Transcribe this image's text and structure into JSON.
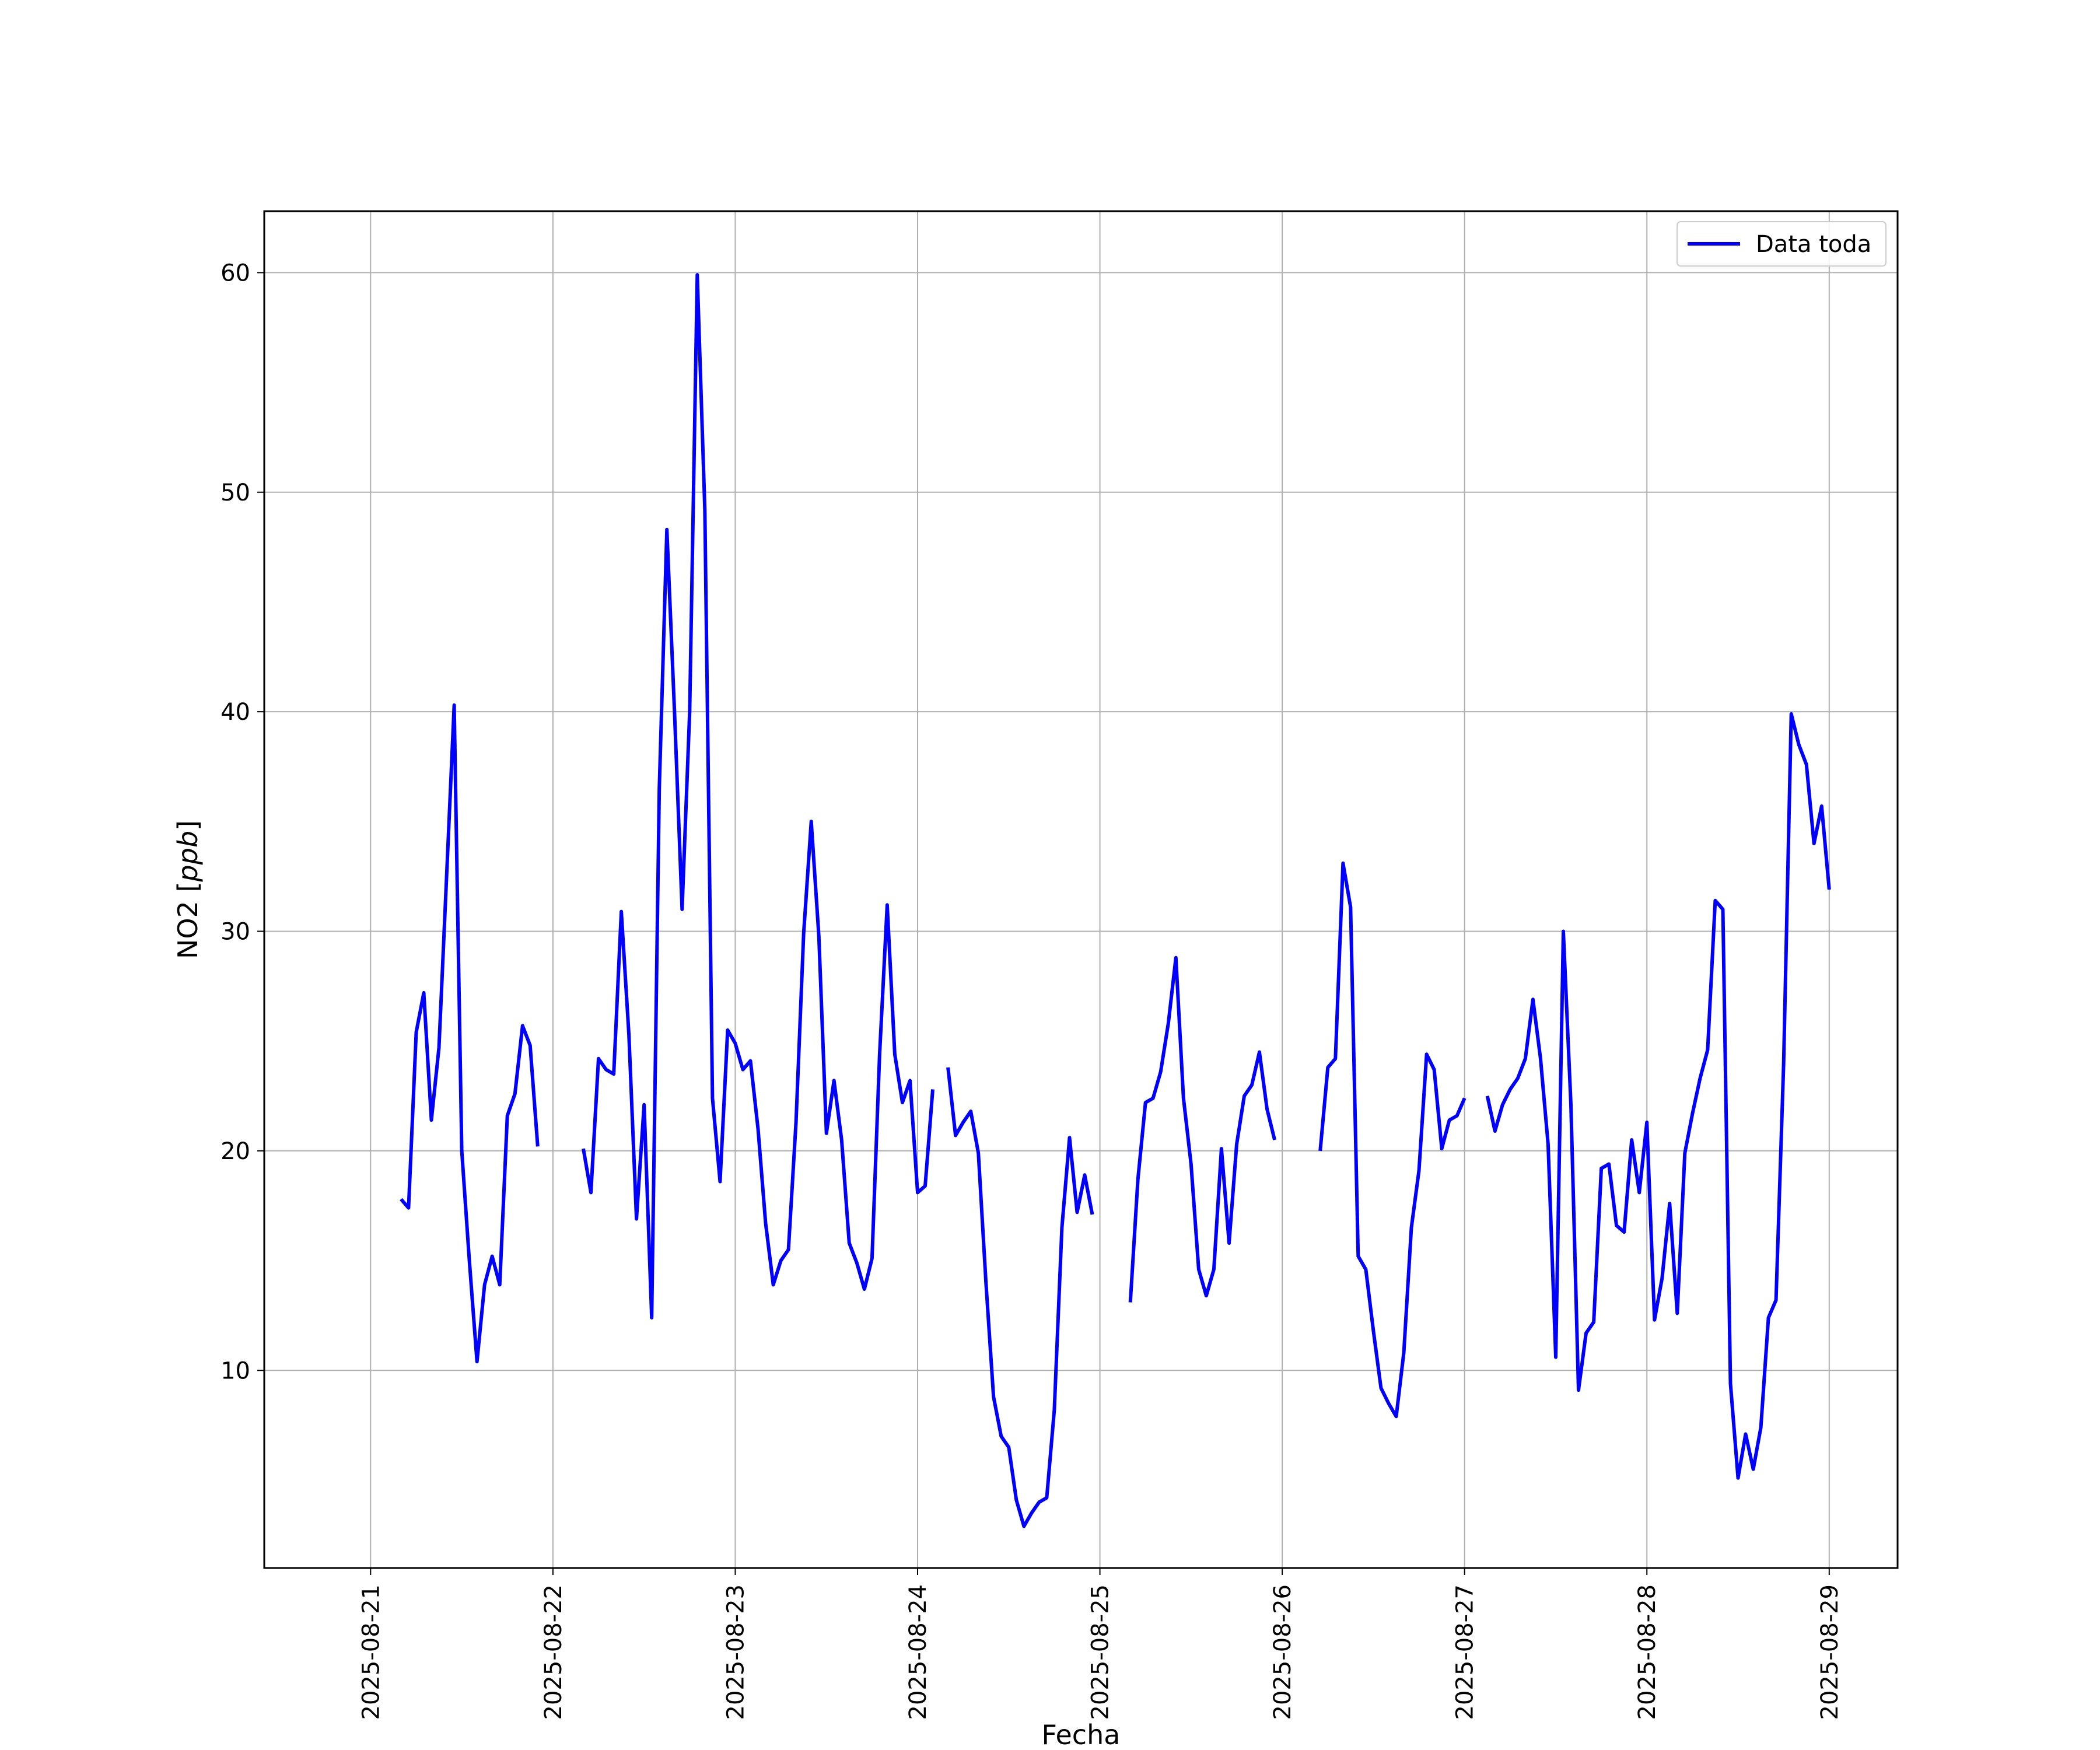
{
  "chart_data": {
    "type": "line",
    "xlabel": "Fecha",
    "ylabel_prefix": "NO2 [",
    "ylabel_unit": "ppb",
    "ylabel_suffix": "]",
    "x_ticks": [
      "2025-08-21",
      "2025-08-22",
      "2025-08-23",
      "2025-08-24",
      "2025-08-25",
      "2025-08-26",
      "2025-08-27",
      "2025-08-28",
      "2025-08-29"
    ],
    "y_ticks": [
      10,
      20,
      30,
      40,
      50,
      60
    ],
    "xlim": [
      "2025-08-20T10:00",
      "2025-08-29T09:00"
    ],
    "ylim": [
      1.0,
      62.8
    ],
    "grid": true,
    "legend_position": "upper-right",
    "line_color": "#0000ff",
    "series": [
      {
        "name": "Data toda",
        "segments": [
          [
            [
              "2025-08-21T04:00",
              17.8
            ],
            [
              "2025-08-21T05:00",
              17.4
            ],
            [
              "2025-08-21T06:00",
              25.4
            ],
            [
              "2025-08-21T07:00",
              27.2
            ],
            [
              "2025-08-21T08:00",
              21.4
            ],
            [
              "2025-08-21T09:00",
              24.7
            ],
            [
              "2025-08-21T10:00",
              32.5
            ],
            [
              "2025-08-21T11:00",
              40.3
            ],
            [
              "2025-08-21T12:00",
              20.0
            ],
            [
              "2025-08-21T13:00",
              15.0
            ],
            [
              "2025-08-21T14:00",
              10.4
            ],
            [
              "2025-08-21T15:00",
              13.9
            ],
            [
              "2025-08-21T16:00",
              15.2
            ],
            [
              "2025-08-21T17:00",
              13.9
            ],
            [
              "2025-08-21T18:00",
              21.6
            ],
            [
              "2025-08-21T19:00",
              22.6
            ],
            [
              "2025-08-21T20:00",
              25.7
            ],
            [
              "2025-08-21T21:00",
              24.8
            ],
            [
              "2025-08-21T22:00",
              20.2
            ]
          ],
          [
            [
              "2025-08-22T04:00",
              20.1
            ],
            [
              "2025-08-22T05:00",
              18.1
            ],
            [
              "2025-08-22T06:00",
              24.2
            ],
            [
              "2025-08-22T07:00",
              23.7
            ],
            [
              "2025-08-22T08:00",
              23.5
            ],
            [
              "2025-08-22T09:00",
              30.9
            ],
            [
              "2025-08-22T10:00",
              25.3
            ],
            [
              "2025-08-22T11:00",
              16.9
            ],
            [
              "2025-08-22T12:00",
              22.1
            ],
            [
              "2025-08-22T13:00",
              12.4
            ],
            [
              "2025-08-22T14:00",
              36.5
            ],
            [
              "2025-08-22T15:00",
              48.3
            ],
            [
              "2025-08-22T16:00",
              40.0
            ],
            [
              "2025-08-22T17:00",
              31.0
            ],
            [
              "2025-08-22T18:00",
              40.0
            ],
            [
              "2025-08-22T19:00",
              59.9
            ],
            [
              "2025-08-22T20:00",
              49.2
            ],
            [
              "2025-08-22T21:00",
              22.4
            ],
            [
              "2025-08-22T22:00",
              18.6
            ],
            [
              "2025-08-22T23:00",
              25.5
            ],
            [
              "2025-08-23T00:00",
              24.9
            ],
            [
              "2025-08-23T01:00",
              23.7
            ],
            [
              "2025-08-23T02:00",
              24.1
            ],
            [
              "2025-08-23T03:00",
              21.0
            ],
            [
              "2025-08-23T04:00",
              16.7
            ],
            [
              "2025-08-23T05:00",
              13.9
            ],
            [
              "2025-08-23T06:00",
              15.0
            ],
            [
              "2025-08-23T07:00",
              15.5
            ],
            [
              "2025-08-23T08:00",
              21.3
            ],
            [
              "2025-08-23T09:00",
              29.9
            ],
            [
              "2025-08-23T10:00",
              35.0
            ],
            [
              "2025-08-23T11:00",
              29.8
            ],
            [
              "2025-08-23T12:00",
              20.8
            ],
            [
              "2025-08-23T13:00",
              23.2
            ],
            [
              "2025-08-23T14:00",
              20.5
            ],
            [
              "2025-08-23T15:00",
              15.8
            ],
            [
              "2025-08-23T16:00",
              14.9
            ],
            [
              "2025-08-23T17:00",
              13.7
            ],
            [
              "2025-08-23T18:00",
              15.1
            ],
            [
              "2025-08-23T19:00",
              24.4
            ],
            [
              "2025-08-23T20:00",
              31.2
            ],
            [
              "2025-08-23T21:00",
              24.4
            ],
            [
              "2025-08-23T22:00",
              22.2
            ],
            [
              "2025-08-23T23:00",
              23.2
            ],
            [
              "2025-08-24T00:00",
              18.1
            ],
            [
              "2025-08-24T01:00",
              18.4
            ],
            [
              "2025-08-24T02:00",
              22.8
            ]
          ],
          [
            [
              "2025-08-24T04:00",
              23.8
            ],
            [
              "2025-08-24T05:00",
              20.7
            ],
            [
              "2025-08-24T06:00",
              21.3
            ],
            [
              "2025-08-24T07:00",
              21.8
            ],
            [
              "2025-08-24T08:00",
              19.9
            ],
            [
              "2025-08-24T09:00",
              14.0
            ],
            [
              "2025-08-24T10:00",
              8.8
            ],
            [
              "2025-08-24T11:00",
              7.0
            ],
            [
              "2025-08-24T12:00",
              6.5
            ],
            [
              "2025-08-24T13:00",
              4.1
            ],
            [
              "2025-08-24T14:00",
              2.9
            ],
            [
              "2025-08-24T15:00",
              3.5
            ],
            [
              "2025-08-24T16:00",
              4.0
            ],
            [
              "2025-08-24T17:00",
              4.2
            ],
            [
              "2025-08-24T18:00",
              8.2
            ],
            [
              "2025-08-24T19:00",
              16.5
            ],
            [
              "2025-08-24T20:00",
              20.6
            ],
            [
              "2025-08-24T21:00",
              17.2
            ],
            [
              "2025-08-24T22:00",
              18.9
            ],
            [
              "2025-08-24T23:00",
              17.1
            ]
          ],
          [
            [
              "2025-08-25T04:00",
              13.1
            ],
            [
              "2025-08-25T05:00",
              18.7
            ],
            [
              "2025-08-25T06:00",
              22.2
            ],
            [
              "2025-08-25T07:00",
              22.4
            ],
            [
              "2025-08-25T08:00",
              23.6
            ],
            [
              "2025-08-25T09:00",
              25.8
            ],
            [
              "2025-08-25T10:00",
              28.8
            ],
            [
              "2025-08-25T11:00",
              22.4
            ],
            [
              "2025-08-25T12:00",
              19.4
            ],
            [
              "2025-08-25T13:00",
              14.6
            ],
            [
              "2025-08-25T14:00",
              13.4
            ],
            [
              "2025-08-25T15:00",
              14.6
            ],
            [
              "2025-08-25T16:00",
              20.1
            ],
            [
              "2025-08-25T17:00",
              15.8
            ],
            [
              "2025-08-25T18:00",
              20.3
            ],
            [
              "2025-08-25T19:00",
              22.5
            ],
            [
              "2025-08-25T20:00",
              23.0
            ],
            [
              "2025-08-25T21:00",
              24.5
            ],
            [
              "2025-08-25T22:00",
              21.9
            ],
            [
              "2025-08-25T23:00",
              20.5
            ]
          ],
          [
            [
              "2025-08-26T05:00",
              20.0
            ],
            [
              "2025-08-26T06:00",
              23.8
            ],
            [
              "2025-08-26T07:00",
              24.2
            ],
            [
              "2025-08-26T08:00",
              33.1
            ],
            [
              "2025-08-26T09:00",
              31.1
            ],
            [
              "2025-08-26T10:00",
              15.2
            ],
            [
              "2025-08-26T11:00",
              14.6
            ],
            [
              "2025-08-26T12:00",
              11.8
            ],
            [
              "2025-08-26T13:00",
              9.2
            ],
            [
              "2025-08-26T14:00",
              8.5
            ],
            [
              "2025-08-26T15:00",
              7.9
            ],
            [
              "2025-08-26T16:00",
              10.8
            ],
            [
              "2025-08-26T17:00",
              16.5
            ],
            [
              "2025-08-26T18:00",
              19.1
            ],
            [
              "2025-08-26T19:00",
              24.4
            ],
            [
              "2025-08-26T20:00",
              23.7
            ],
            [
              "2025-08-26T21:00",
              20.1
            ],
            [
              "2025-08-26T22:00",
              21.4
            ],
            [
              "2025-08-26T23:00",
              21.6
            ],
            [
              "2025-08-27T00:00",
              22.4
            ]
          ],
          [
            [
              "2025-08-27T03:00",
              22.5
            ],
            [
              "2025-08-27T04:00",
              20.9
            ],
            [
              "2025-08-27T05:00",
              22.1
            ],
            [
              "2025-08-27T06:00",
              22.8
            ],
            [
              "2025-08-27T07:00",
              23.3
            ],
            [
              "2025-08-27T08:00",
              24.2
            ],
            [
              "2025-08-27T09:00",
              26.9
            ],
            [
              "2025-08-27T10:00",
              24.2
            ],
            [
              "2025-08-27T11:00",
              20.3
            ],
            [
              "2025-08-27T12:00",
              10.6
            ],
            [
              "2025-08-27T13:00",
              30.0
            ],
            [
              "2025-08-27T14:00",
              22.1
            ],
            [
              "2025-08-27T15:00",
              9.1
            ],
            [
              "2025-08-27T16:00",
              11.7
            ],
            [
              "2025-08-27T17:00",
              12.2
            ],
            [
              "2025-08-27T18:00",
              19.2
            ],
            [
              "2025-08-27T19:00",
              19.4
            ],
            [
              "2025-08-27T20:00",
              16.6
            ],
            [
              "2025-08-27T21:00",
              16.3
            ],
            [
              "2025-08-27T22:00",
              20.5
            ],
            [
              "2025-08-27T23:00",
              18.1
            ],
            [
              "2025-08-28T00:00",
              21.3
            ],
            [
              "2025-08-28T01:00",
              12.3
            ],
            [
              "2025-08-28T02:00",
              14.2
            ],
            [
              "2025-08-28T03:00",
              17.6
            ],
            [
              "2025-08-28T04:00",
              12.6
            ],
            [
              "2025-08-28T05:00",
              19.9
            ],
            [
              "2025-08-28T06:00",
              21.7
            ],
            [
              "2025-08-28T07:00",
              23.3
            ],
            [
              "2025-08-28T08:00",
              24.6
            ],
            [
              "2025-08-28T09:00",
              31.4
            ],
            [
              "2025-08-28T10:00",
              31.0
            ],
            [
              "2025-08-28T11:00",
              9.4
            ],
            [
              "2025-08-28T12:00",
              5.1
            ],
            [
              "2025-08-28T13:00",
              7.1
            ],
            [
              "2025-08-28T14:00",
              5.5
            ],
            [
              "2025-08-28T15:00",
              7.4
            ],
            [
              "2025-08-28T16:00",
              12.4
            ],
            [
              "2025-08-28T17:00",
              13.2
            ],
            [
              "2025-08-28T18:00",
              24.0
            ],
            [
              "2025-08-28T19:00",
              39.9
            ],
            [
              "2025-08-28T20:00",
              38.5
            ],
            [
              "2025-08-28T21:00",
              37.6
            ],
            [
              "2025-08-28T22:00",
              34.0
            ],
            [
              "2025-08-28T23:00",
              35.7
            ],
            [
              "2025-08-29T00:00",
              31.9
            ]
          ]
        ]
      }
    ]
  }
}
